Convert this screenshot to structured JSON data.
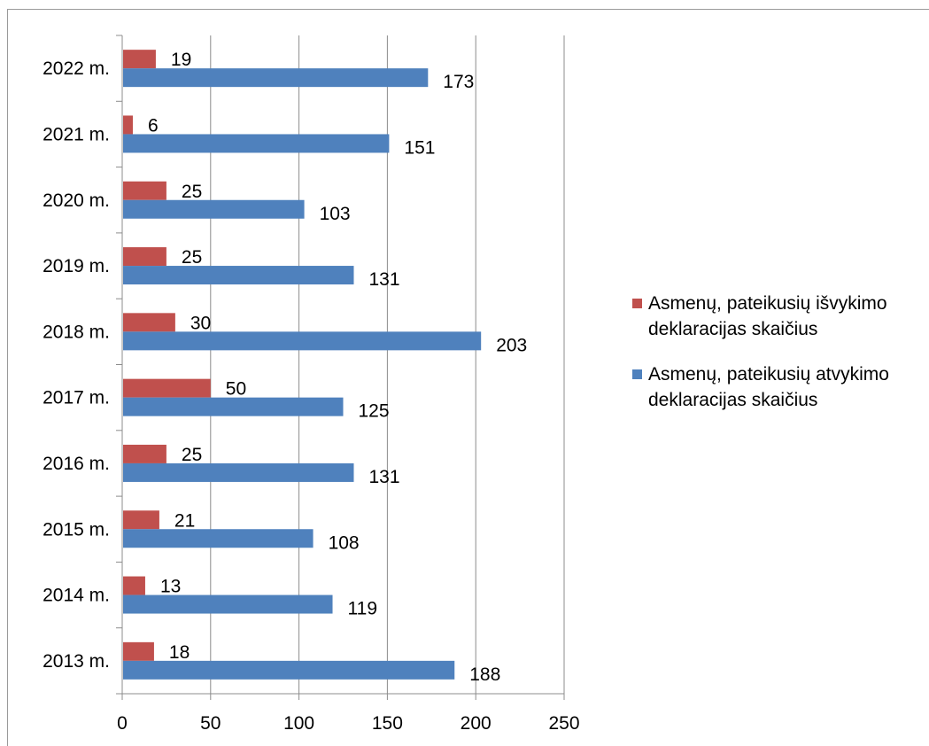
{
  "chart_data": {
    "type": "bar",
    "orientation": "horizontal",
    "categories": [
      "2013 m.",
      "2014 m.",
      "2015 m.",
      "2016 m.",
      "2017 m.",
      "2018 m.",
      "2019 m.",
      "2020 m.",
      "2021 m.",
      "2022 m."
    ],
    "series": [
      {
        "name": "Asmenų, pateikusių išvykimo deklaracijas skaičius",
        "color": "#c0504d",
        "values": [
          18,
          13,
          21,
          25,
          50,
          30,
          25,
          25,
          6,
          19
        ]
      },
      {
        "name": "Asmenų, pateikusių atvykimo deklaracijas skaičius",
        "color": "#4f81bd",
        "values": [
          188,
          119,
          108,
          131,
          125,
          203,
          131,
          103,
          151,
          173
        ]
      }
    ],
    "xlim": [
      0,
      250
    ],
    "xticks": [
      "0",
      "50",
      "100",
      "150",
      "200",
      "250"
    ],
    "grid": "vertical",
    "legend_position": "right",
    "title": "",
    "xlabel": "",
    "ylabel": ""
  }
}
